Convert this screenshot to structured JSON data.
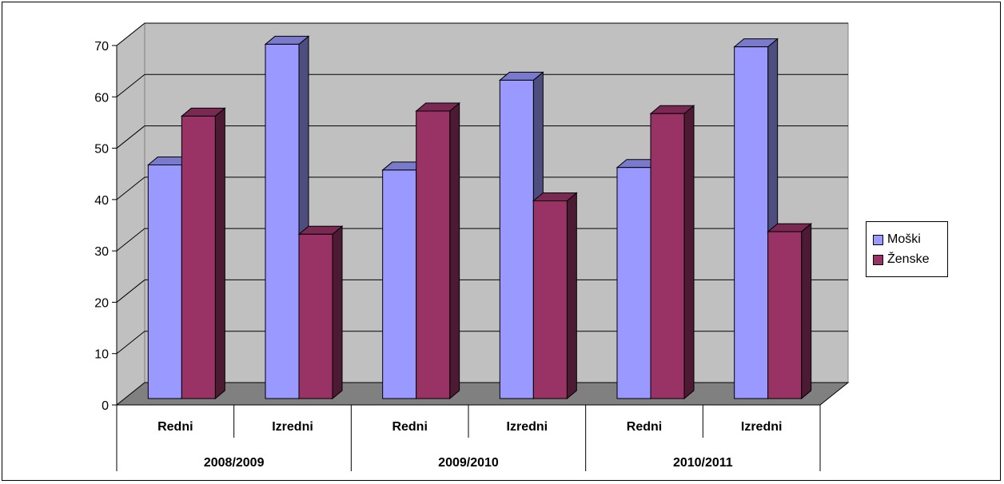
{
  "chart_data": {
    "type": "bar",
    "groups": [
      "2008/2009",
      "2009/2010",
      "2010/2011"
    ],
    "categories": [
      "Redni",
      "Izredni",
      "Redni",
      "Izredni",
      "Redni",
      "Izredni"
    ],
    "series": [
      {
        "name": "Moški",
        "color": "#9999ff",
        "side_color": "#4d4d80",
        "top_color": "#7a7acc",
        "values": [
          45.5,
          69,
          44.5,
          62,
          45,
          68.5
        ]
      },
      {
        "name": "Ženske",
        "color": "#993366",
        "side_color": "#4d1a33",
        "top_color": "#7a2952",
        "values": [
          55,
          32,
          56,
          38.5,
          55.5,
          32.5
        ]
      }
    ],
    "yticks": [
      "0",
      "10",
      "20",
      "30",
      "40",
      "50",
      "60",
      "70"
    ],
    "ylim": [
      0,
      70
    ],
    "grid": true,
    "legend": "right"
  }
}
